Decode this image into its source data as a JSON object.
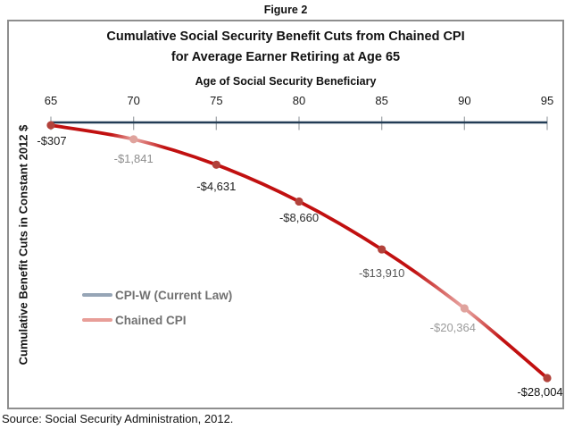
{
  "figure_label": "Figure 2",
  "source": "Source: Social Security Administration, 2012.",
  "chart": {
    "title_line1": "Cumulative Social Security Benefit Cuts from Chained CPI",
    "title_line2": "for Average Earner Retiring at Age 65",
    "x_axis_title": "Age of Social Security Beneficiary",
    "y_axis_title": "Cumulative Benefit Cuts in Constant 2012 $",
    "legend": [
      {
        "label": "CPI-W (Current Law)",
        "swatch_color": "#96a5b6"
      },
      {
        "label": "Chained CPI",
        "swatch_color": "#e89e98"
      }
    ]
  },
  "chart_data": {
    "type": "line",
    "title": "Cumulative Social Security Benefit Cuts from Chained CPI for Average Earner Retiring at Age 65",
    "xlabel": "Age of Social Security Beneficiary",
    "ylabel": "Cumulative Benefit Cuts in Constant 2012 $",
    "x": [
      65,
      70,
      75,
      80,
      85,
      90,
      95
    ],
    "xlim": [
      65,
      95
    ],
    "ylim": [
      -31500,
      0
    ],
    "grid": false,
    "legend_position": "middle-left",
    "series": [
      {
        "name": "CPI-W (Current Law)",
        "values": [
          0,
          0,
          0,
          0,
          0,
          0,
          0
        ],
        "color": "#223c55",
        "markers": false
      },
      {
        "name": "Chained CPI",
        "values": [
          -307,
          -1841,
          -4631,
          -8660,
          -13910,
          -20364,
          -28004
        ],
        "color": "#c11010",
        "markers": true
      }
    ],
    "point_labels": [
      "-$307",
      "-$1,841",
      "-$4,631",
      "-$8,660",
      "-$13,910",
      "-$20,364",
      "-$28,004"
    ],
    "muted_point_indices": [
      1,
      5
    ],
    "point_label_colors": [
      "#1c1c1c",
      "#8e8e8e",
      "#1c1c1c",
      "#2b2b2b",
      "#575757",
      "#9b9b9b",
      "#111111"
    ]
  },
  "colors": {
    "axis_line": "#223c55",
    "chained_line": "#c11010",
    "chained_line_muted": "#e9aba7",
    "marker": "#b2423b",
    "marker_muted": "#dfa39d",
    "tick": "#a5a9ad",
    "box_border": "#8e8e8e",
    "legend_text": "#717171"
  }
}
